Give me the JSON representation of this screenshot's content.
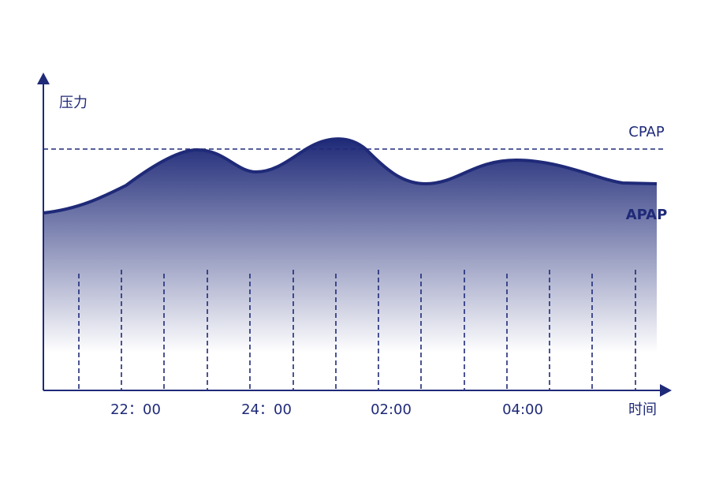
{
  "y_axis_label": "压力",
  "x_axis_label": "时间",
  "x_ticks": [
    "22：00",
    "24：00",
    "02:00",
    "04:00"
  ],
  "lines": {
    "cpap": "CPAP",
    "apap": "APAP"
  }
}
